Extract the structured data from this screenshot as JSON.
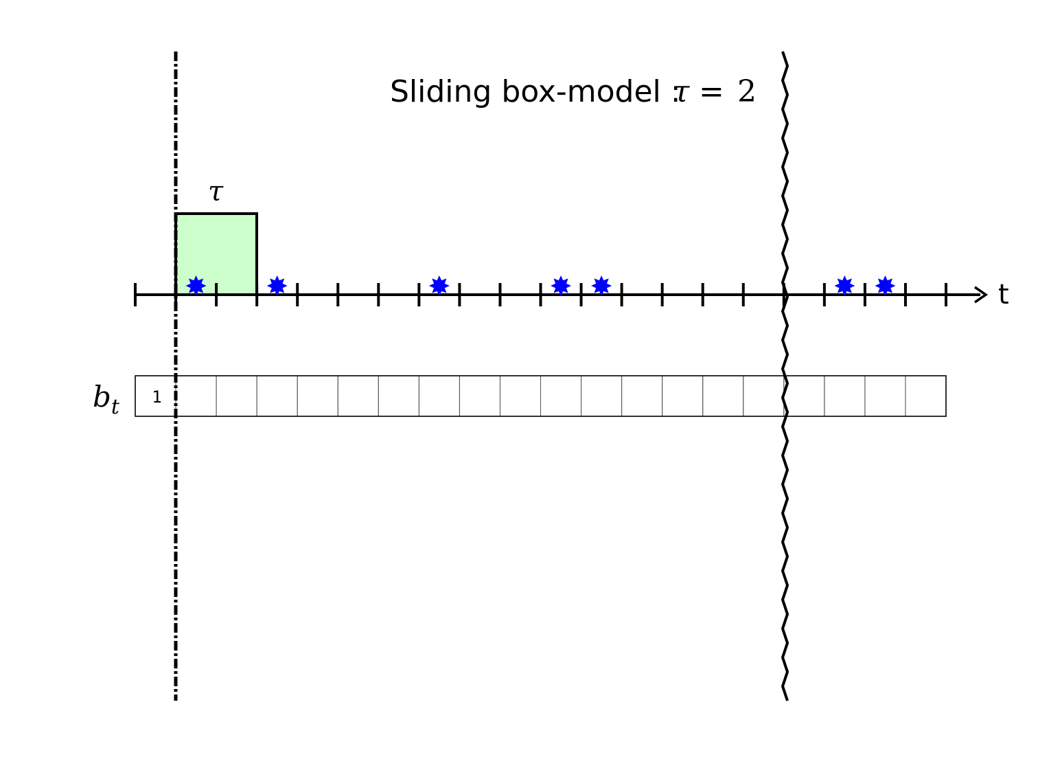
{
  "title": {
    "prefix": "Sliding box-model :",
    "symbol": "τ",
    "equals": "=",
    "value": "2"
  },
  "box": {
    "label": "τ",
    "fill_color": "#ccffcc",
    "width_in_slots": 2
  },
  "axis": {
    "label": "t",
    "slot_count": 20
  },
  "events": {
    "color": "#0000ff",
    "slots": [
      2,
      4,
      8,
      11,
      12,
      18,
      19
    ]
  },
  "row": {
    "label": "b",
    "subscript": "t",
    "cells": [
      "1",
      "",
      "",
      "",
      "",
      "",
      "",
      "",
      "",
      "",
      "",
      "",
      "",
      "",
      "",
      "",
      "",
      "",
      "",
      ""
    ]
  },
  "markers": {
    "start_line": "dash-dot",
    "break_line": "zigzag"
  }
}
